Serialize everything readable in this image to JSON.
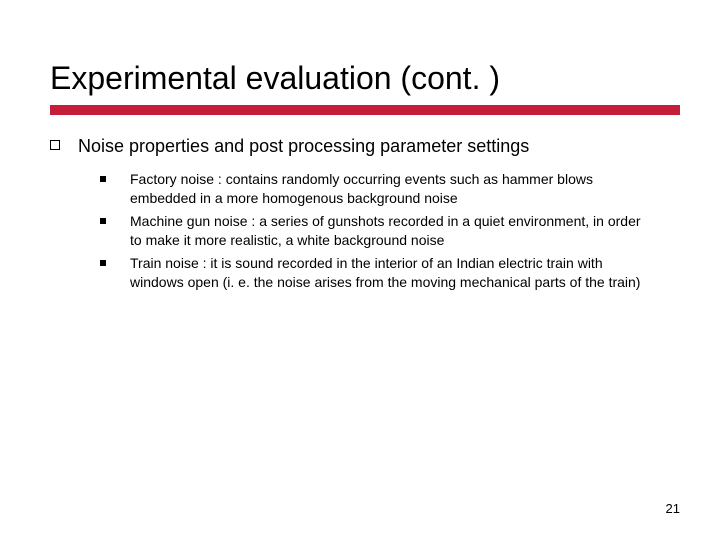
{
  "slide": {
    "title": "Experimental evaluation (cont. )",
    "underline_color": "#c41e3a",
    "background_color": "#ffffff",
    "title_fontsize": 32,
    "level1_fontsize": 18,
    "level2_fontsize": 14,
    "text_color": "#000000"
  },
  "content": {
    "heading": "Noise properties and post processing parameter settings",
    "items": [
      "Factory noise : contains randomly occurring events such as hammer blows embedded in a more homogenous background noise",
      "Machine gun noise : a series of gunshots recorded in a quiet environment, in order to make it more realistic, a white background noise",
      "Train noise : it is sound recorded in the interior of an Indian electric train with windows open (i. e. the noise arises from the moving mechanical parts of the train)"
    ]
  },
  "page_number": "21"
}
